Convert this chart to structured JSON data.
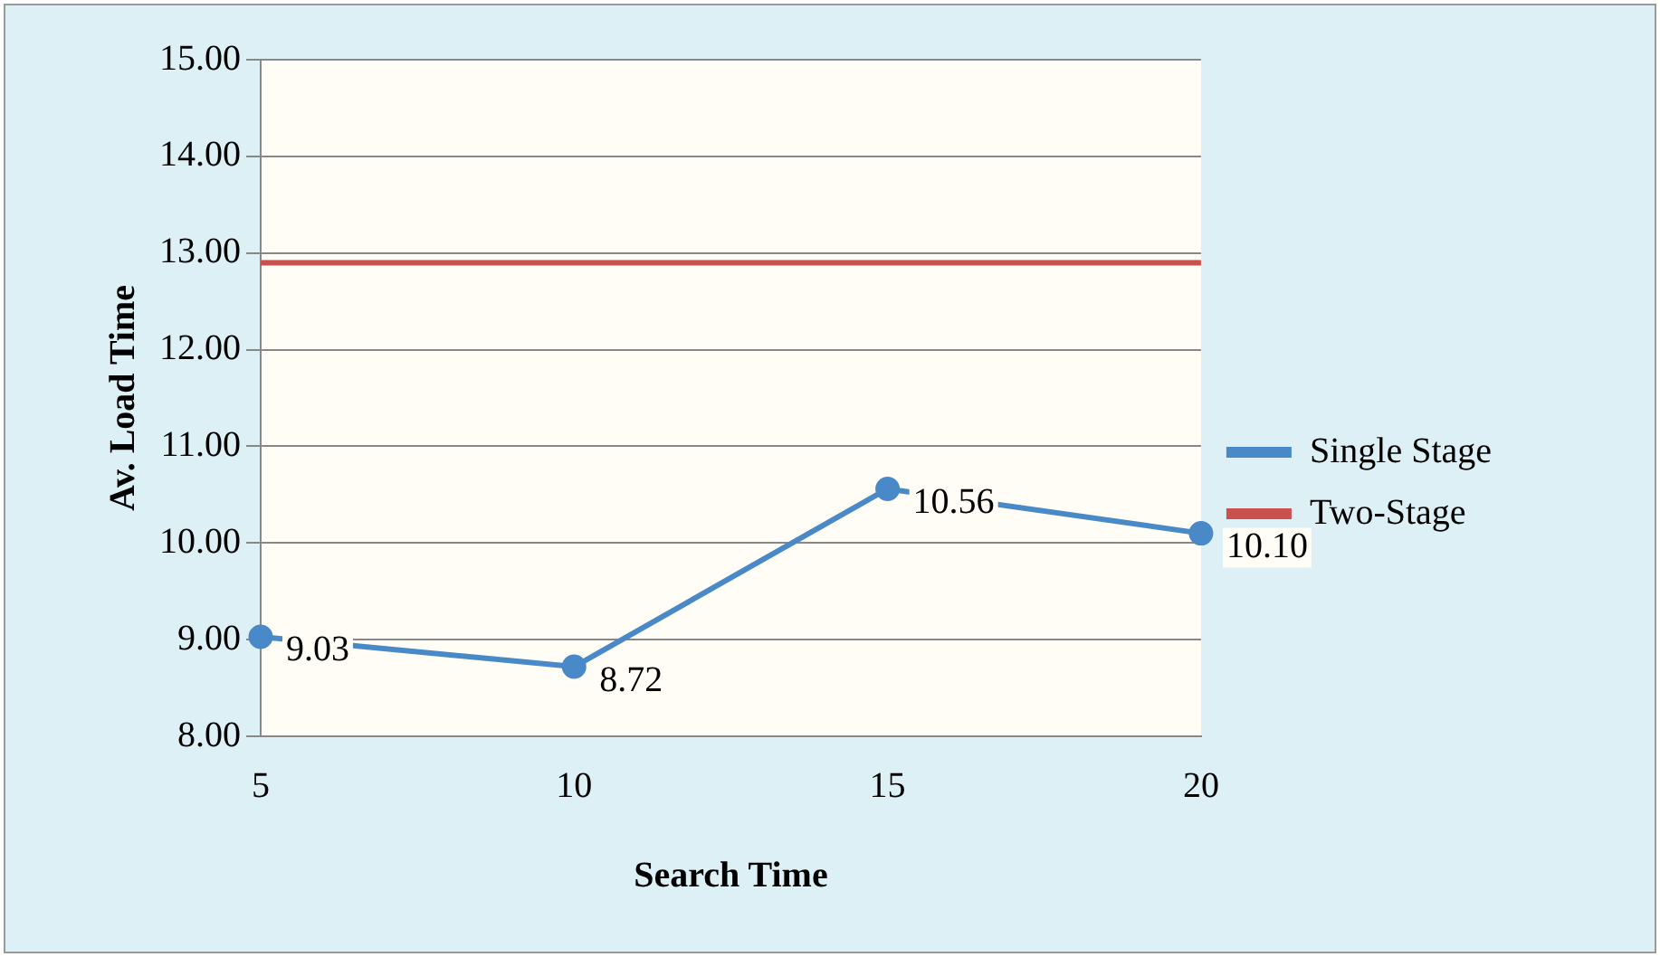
{
  "chart_data": {
    "type": "line",
    "xlabel": "Search Time",
    "ylabel": "Av. Load Time",
    "categories": [
      "5",
      "10",
      "15",
      "20"
    ],
    "series": [
      {
        "name": "Single Stage",
        "color": "#4a89c8",
        "values": [
          9.03,
          8.72,
          10.56,
          10.1
        ],
        "value_labels": [
          "9.03",
          "8.72",
          "10.56",
          "10.10"
        ],
        "marker": "circle"
      },
      {
        "name": "Two-Stage",
        "color": "#c9504c",
        "values": [
          12.9,
          12.9,
          12.9,
          12.9
        ],
        "marker": "none"
      }
    ],
    "ylim": [
      8,
      15
    ],
    "yticks": [
      {
        "value": 8,
        "label": "8.00"
      },
      {
        "value": 9,
        "label": "9.00"
      },
      {
        "value": 10,
        "label": "10.00"
      },
      {
        "value": 11,
        "label": "11.00"
      },
      {
        "value": 12,
        "label": "12.00"
      },
      {
        "value": 13,
        "label": "13.00"
      },
      {
        "value": 14,
        "label": "14.00"
      },
      {
        "value": 15,
        "label": "15.00"
      }
    ],
    "grid": "y",
    "legend": "right",
    "line_style": "solid"
  }
}
